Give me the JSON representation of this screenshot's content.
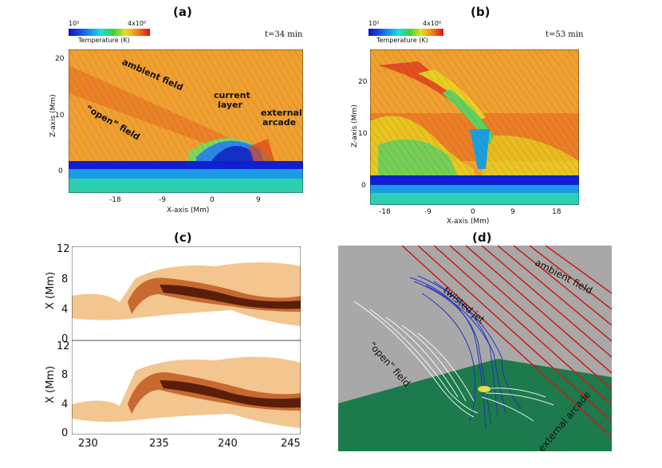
{
  "panels": {
    "a": {
      "label": "(a)",
      "colorbar": {
        "min": "10³",
        "max": "4x10⁶",
        "title": "Temperature (K)"
      },
      "time": "t=34 min",
      "xlabel": "X-axis (Mm)",
      "ylabel": "Z-axis (Mm)",
      "xticks": [
        "-18",
        "-9",
        "0",
        "9"
      ],
      "yticks": [
        "20",
        "10",
        "0"
      ],
      "annotations": {
        "ambient": "ambient field",
        "open": "“open” field",
        "current": [
          "current",
          "layer"
        ],
        "external": [
          "external",
          "arcade"
        ]
      }
    },
    "b": {
      "label": "(b)",
      "colorbar": {
        "min": "10³",
        "max": "4x10⁶",
        "title": "Temperature (K)"
      },
      "time": "t=53 min",
      "xlabel": "X-axis (Mm)",
      "ylabel": "Z-axis (Mm)",
      "xticks": [
        "-18",
        "-9",
        "0",
        "9",
        "18"
      ],
      "yticks": [
        "20",
        "10",
        "0"
      ]
    },
    "c": {
      "label": "(c)",
      "ylabel": "X (Mm)",
      "yticks": [
        "12",
        "8",
        "4",
        "0"
      ],
      "xticks": [
        "230",
        "235",
        "240",
        "245"
      ]
    },
    "d": {
      "label": "(d)",
      "annotations": {
        "ambient": "ambient field",
        "twisted": "twisted jet",
        "open": "“open” field",
        "external": "external arcade"
      }
    }
  },
  "colors": {
    "cold": "#1428e0",
    "hot": "#e8821e",
    "red": "#d01818",
    "ground": "#1d7a4c",
    "sky": "#a8a8a8"
  }
}
